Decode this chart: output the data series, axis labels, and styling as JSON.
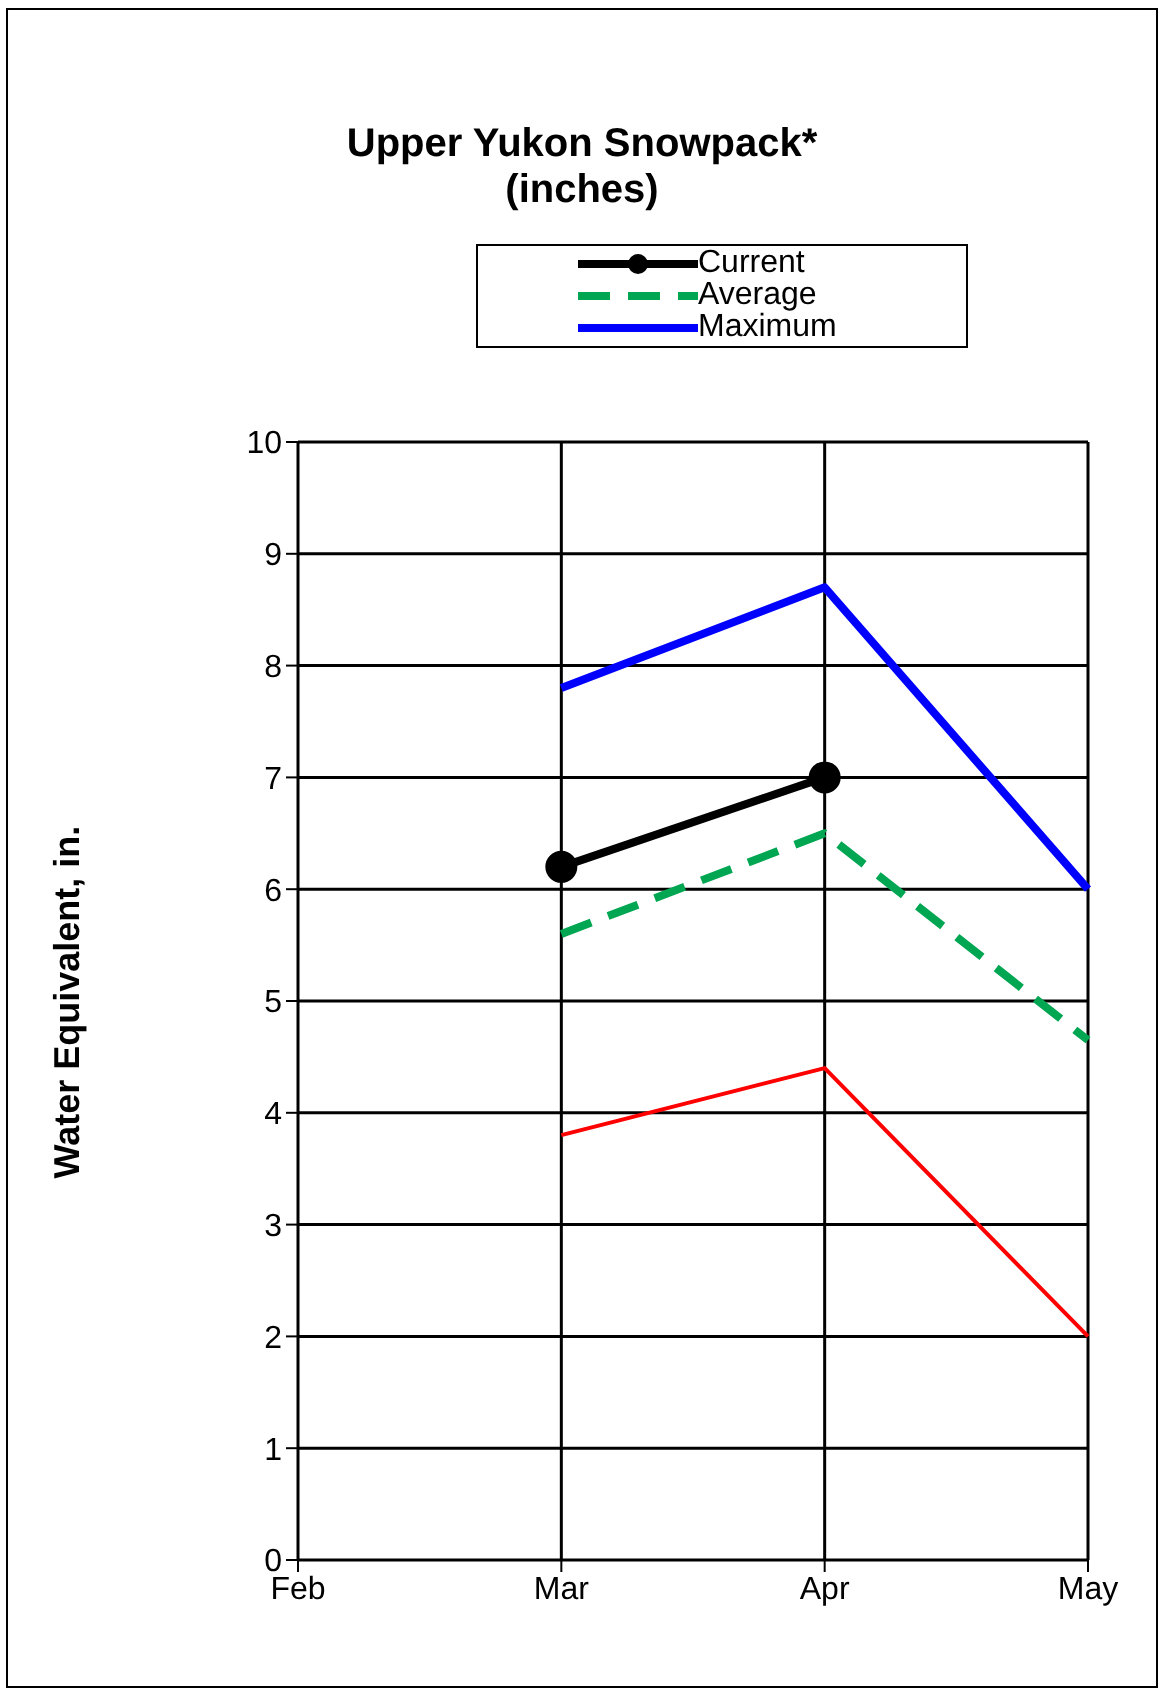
{
  "chart_data": {
    "type": "line",
    "title": "Upper Yukon Snowpack*",
    "subtitle": "(inches)",
    "ylabel": "Water Equivalent, in.",
    "categories": [
      "Feb",
      "Mar",
      "Apr",
      "May"
    ],
    "series": [
      {
        "name": "Current",
        "color": "#000000",
        "values": [
          null,
          6.2,
          7.0,
          null
        ],
        "marker": "circle",
        "line_style": "solid"
      },
      {
        "name": "Average",
        "color": "#00a651",
        "values": [
          null,
          5.6,
          6.5,
          4.65
        ],
        "marker": "none",
        "line_style": "dashed"
      },
      {
        "name": "Maximum",
        "color": "#0000ff",
        "values": [
          null,
          7.8,
          8.7,
          6.0
        ],
        "marker": "none",
        "line_style": "solid"
      },
      {
        "color": "#ff0000",
        "values": [
          null,
          3.8,
          4.4,
          2.0
        ],
        "marker": "none",
        "line_style": "solid"
      }
    ],
    "ylim": [
      0,
      10
    ],
    "yticks": [
      0,
      1,
      2,
      3,
      4,
      5,
      6,
      7,
      8,
      9,
      10
    ],
    "grid": true,
    "legend": "top"
  }
}
